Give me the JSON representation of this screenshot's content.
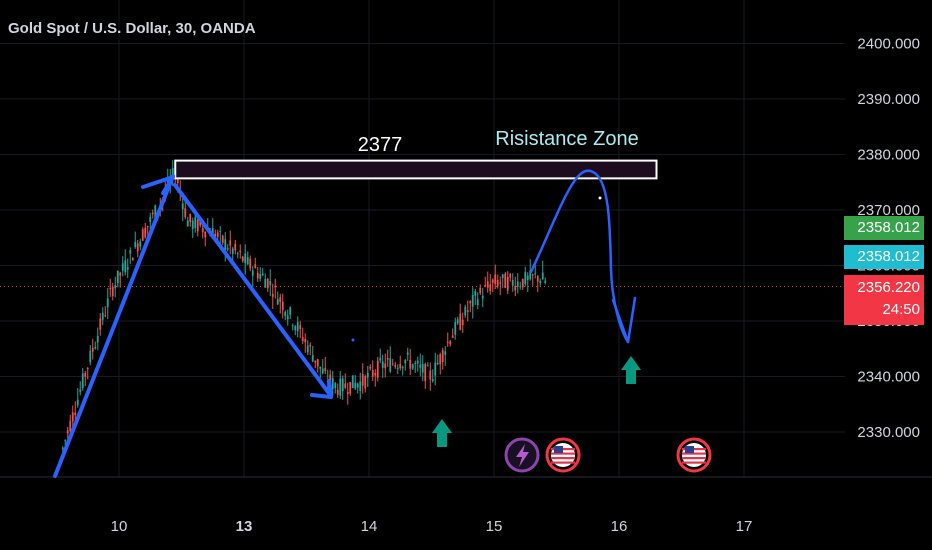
{
  "header": {
    "title": "Gold Spot / U.S. Dollar, 30, OANDA"
  },
  "chart_data": {
    "type": "candlestick",
    "y_ticks": [
      "2330.000",
      "2340.000",
      "2350.000",
      "2360.000",
      "2370.000",
      "2380.000",
      "2390.000",
      "2400.000"
    ],
    "y_tick_values": [
      2330,
      2340,
      2350,
      2360,
      2370,
      2380,
      2390,
      2400
    ],
    "x_ticks": [
      {
        "label": "10",
        "bold": false
      },
      {
        "label": "13",
        "bold": true
      },
      {
        "label": "14",
        "bold": false
      },
      {
        "label": "15",
        "bold": false
      },
      {
        "label": "16",
        "bold": false
      },
      {
        "label": "17",
        "bold": false
      }
    ],
    "x_tick_values": [
      10,
      11,
      12,
      13,
      14,
      15
    ],
    "ylim": [
      2324,
      2404
    ],
    "x_path": [
      {
        "x": 9.55,
        "y": 2327
      },
      {
        "x": 9.75,
        "y": 2342
      },
      {
        "x": 9.95,
        "y": 2356
      },
      {
        "x": 10.15,
        "y": 2364
      },
      {
        "x": 10.35,
        "y": 2372
      },
      {
        "x": 10.45,
        "y": 2377
      },
      {
        "x": 10.55,
        "y": 2368
      },
      {
        "x": 10.75,
        "y": 2366
      },
      {
        "x": 10.95,
        "y": 2362
      },
      {
        "x": 11.2,
        "y": 2357
      },
      {
        "x": 11.4,
        "y": 2350
      },
      {
        "x": 11.55,
        "y": 2344
      },
      {
        "x": 11.65,
        "y": 2340
      },
      {
        "x": 11.75,
        "y": 2338
      },
      {
        "x": 11.95,
        "y": 2339
      },
      {
        "x": 12.1,
        "y": 2342
      },
      {
        "x": 12.3,
        "y": 2343
      },
      {
        "x": 12.5,
        "y": 2340
      },
      {
        "x": 12.65,
        "y": 2347
      },
      {
        "x": 12.85,
        "y": 2354
      },
      {
        "x": 13.0,
        "y": 2357
      },
      {
        "x": 13.2,
        "y": 2357
      },
      {
        "x": 13.35,
        "y": 2358
      },
      {
        "x": 13.42,
        "y": 2357
      }
    ],
    "resistance_zone": {
      "x_start": 10.45,
      "x_end": 14.3,
      "y_low": 2375.7,
      "y_high": 2378.9
    },
    "current_price": 2356.22,
    "price_tags": [
      {
        "label": "2358.012",
        "color": "#36a34b",
        "value": 2358.012
      },
      {
        "label": "2358.012",
        "color": "#1fbcd2",
        "value": 2358.012
      },
      {
        "label": "2356.220",
        "color": "#f23645",
        "value": 2356.22
      }
    ],
    "countdown": "24:50",
    "annotations": [
      {
        "text": "2377",
        "color": "#ffffff"
      },
      {
        "text": "Risistance Zone",
        "color": "#a6ecf0"
      }
    ],
    "colors": {
      "up": "#26a69a",
      "down": "#ef5350",
      "drawing": "#2962ff",
      "grid": "#161a22"
    }
  }
}
